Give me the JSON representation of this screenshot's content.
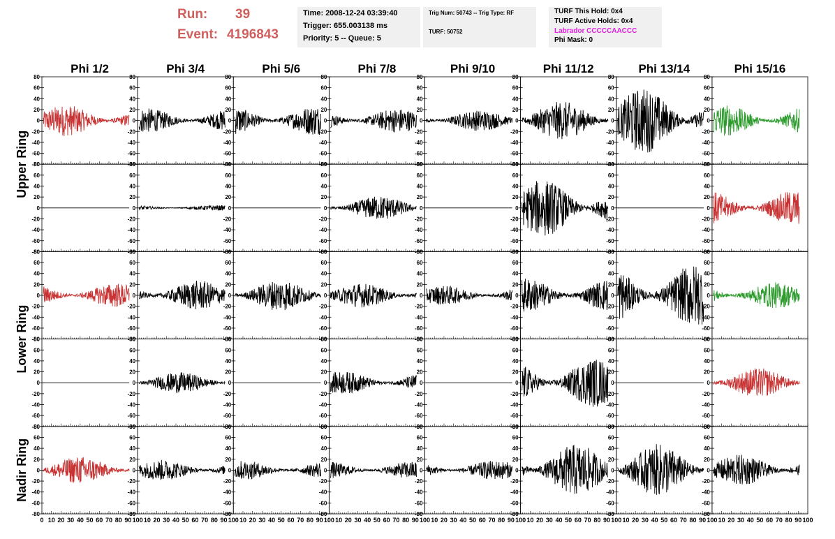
{
  "header": {
    "run_label": "Run:",
    "run_value": "39",
    "event_label": "Event:",
    "event_value": "4196843"
  },
  "timing_box": {
    "time": "Time: 2008-12-24 03:39:40",
    "trigger": "Trigger: 655.003138 ms",
    "priority": "Priority: 5 -- Queue: 5"
  },
  "trig_box": {
    "trig": "Trig Num: 50743 -- Trig Type: RF",
    "turf": "TURF: 50752"
  },
  "turf_box": {
    "this_hold": "TURF This Hold: 0x4",
    "active_holds": "TURF Active Holds: 0x4",
    "labrador": "Labrador CCCCCAACCC",
    "labrador_color": "#e020e0",
    "phi_mask": "Phi Mask: 0"
  },
  "chart_data": {
    "type": "line",
    "columns": [
      "Phi 1/2",
      "Phi 3/4",
      "Phi 5/6",
      "Phi 7/8",
      "Phi 9/10",
      "Phi 11/12",
      "Phi 13/14",
      "Phi 15/16"
    ],
    "ring_labels": [
      "Upper Ring",
      "Lower Ring",
      "Nadir Ring"
    ],
    "ylim": [
      -80,
      80
    ],
    "yticks": [
      -80,
      -60,
      -40,
      -20,
      0,
      20,
      40,
      60,
      80
    ],
    "xlim": [
      0,
      100
    ],
    "xtick_labels_first": [
      "0",
      "10",
      "20",
      "30",
      "40",
      "50",
      "60",
      "70",
      "80",
      "90",
      "100"
    ],
    "xtick_labels_other": [
      "10",
      "20",
      "30",
      "40",
      "50",
      "60",
      "70",
      "80",
      "90",
      "100"
    ],
    "colors": {
      "black": "#000000",
      "red": "#c83232",
      "green": "#2e9b2e"
    },
    "rows": [
      [
        {
          "c": "red",
          "a": 18
        },
        {
          "c": "black",
          "a": 14
        },
        {
          "c": "black",
          "a": 17
        },
        {
          "c": "black",
          "a": 14
        },
        {
          "c": "black",
          "a": 12
        },
        {
          "c": "black",
          "a": 22
        },
        {
          "c": "black",
          "a": 38
        },
        {
          "c": "green",
          "a": 18
        }
      ],
      [
        {
          "c": "black",
          "a": 0
        },
        {
          "c": "black",
          "a": 3
        },
        {
          "c": "black",
          "a": 0
        },
        {
          "c": "black",
          "a": 14
        },
        {
          "c": "black",
          "a": 0
        },
        {
          "c": "black",
          "a": 33
        },
        {
          "c": "black",
          "a": 0
        },
        {
          "c": "red",
          "a": 20
        }
      ],
      [
        {
          "c": "red",
          "a": 14
        },
        {
          "c": "black",
          "a": 17
        },
        {
          "c": "black",
          "a": 18
        },
        {
          "c": "black",
          "a": 14
        },
        {
          "c": "black",
          "a": 11
        },
        {
          "c": "black",
          "a": 20
        },
        {
          "c": "black",
          "a": 36
        },
        {
          "c": "green",
          "a": 15
        }
      ],
      [
        {
          "c": "black",
          "a": 0
        },
        {
          "c": "black",
          "a": 12
        },
        {
          "c": "black",
          "a": 0
        },
        {
          "c": "black",
          "a": 13
        },
        {
          "c": "black",
          "a": 0
        },
        {
          "c": "black",
          "a": 28
        },
        {
          "c": "black",
          "a": 0
        },
        {
          "c": "red",
          "a": 17
        }
      ],
      [
        {
          "c": "red",
          "a": 16
        },
        {
          "c": "black",
          "a": 12
        },
        {
          "c": "black",
          "a": 11
        },
        {
          "c": "black",
          "a": 10
        },
        {
          "c": "black",
          "a": 11
        },
        {
          "c": "black",
          "a": 30
        },
        {
          "c": "black",
          "a": 30
        },
        {
          "c": "black",
          "a": 18
        }
      ]
    ]
  }
}
